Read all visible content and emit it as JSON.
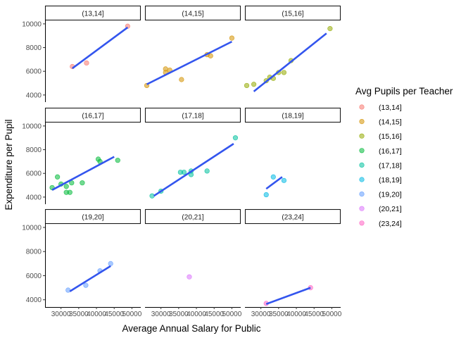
{
  "chart_data": {
    "type": "scatter",
    "layout": "facet_wrap",
    "xlabel": "Average Annual Salary for Public",
    "ylabel": "Expenditure per Pupil",
    "xlim": [
      25500,
      52500
    ],
    "ylim": [
      3400,
      10350
    ],
    "x_ticks": [
      30000,
      35000,
      40000,
      45000,
      50000
    ],
    "x_tick_labels": [
      "30000",
      "35000",
      "40000",
      "45000",
      "50000"
    ],
    "y_ticks": [
      4000,
      6000,
      8000,
      10000
    ],
    "y_tick_labels": [
      "4000",
      "6000",
      "8000",
      "10000"
    ],
    "legend": {
      "title": "Avg Pupils per Teacher",
      "position": "right",
      "entries": [
        {
          "label": "(13,14]",
          "color": "#F8766D"
        },
        {
          "label": "(14,15]",
          "color": "#D39200"
        },
        {
          "label": "(15,16]",
          "color": "#93AA00"
        },
        {
          "label": "(16,17]",
          "color": "#00BA38"
        },
        {
          "label": "(17,18]",
          "color": "#00C19F"
        },
        {
          "label": "(18,19]",
          "color": "#00B9E3"
        },
        {
          "label": "(19,20]",
          "color": "#619CFF"
        },
        {
          "label": "(20,21]",
          "color": "#DB72FB"
        },
        {
          "label": "(23,24]",
          "color": "#FF61C3"
        }
      ]
    },
    "fit_line_color": "#3355ee",
    "panels": [
      {
        "label": "(13,14]",
        "color": "#F8766D",
        "points": [
          [
            33200,
            6400
          ],
          [
            37200,
            6700
          ],
          [
            48800,
            9800
          ]
        ],
        "fit": [
          [
            33200,
            6250
          ],
          [
            48800,
            9700
          ]
        ]
      },
      {
        "label": "(14,15]",
        "color": "#D39200",
        "points": [
          [
            26000,
            4800
          ],
          [
            31300,
            5900
          ],
          [
            31300,
            6200
          ],
          [
            32500,
            6100
          ],
          [
            35800,
            5300
          ],
          [
            43000,
            7400
          ],
          [
            44000,
            7300
          ],
          [
            50000,
            8800
          ]
        ],
        "fit": [
          [
            26000,
            4900
          ],
          [
            50000,
            8500
          ]
        ]
      },
      {
        "label": "(15,16]",
        "color": "#93AA00",
        "points": [
          [
            26000,
            4800
          ],
          [
            28000,
            4900
          ],
          [
            31500,
            5200
          ],
          [
            32500,
            5500
          ],
          [
            33500,
            5400
          ],
          [
            35000,
            5900
          ],
          [
            36500,
            5900
          ],
          [
            38500,
            6900
          ],
          [
            49500,
            9600
          ]
        ],
        "fit": [
          [
            28000,
            4300
          ],
          [
            48500,
            9200
          ]
        ]
      },
      {
        "label": "(16,17]",
        "color": "#00BA38",
        "points": [
          [
            27500,
            4800
          ],
          [
            29000,
            5700
          ],
          [
            30000,
            5100
          ],
          [
            31500,
            4400
          ],
          [
            31500,
            4900
          ],
          [
            32500,
            4400
          ],
          [
            33000,
            5200
          ],
          [
            36000,
            5200
          ],
          [
            40500,
            7200
          ],
          [
            41000,
            7000
          ],
          [
            46000,
            7100
          ]
        ],
        "fit": [
          [
            27500,
            4600
          ],
          [
            45000,
            7400
          ]
        ]
      },
      {
        "label": "(17,18]",
        "color": "#00C19F",
        "points": [
          [
            27500,
            4100
          ],
          [
            30000,
            4500
          ],
          [
            35500,
            6100
          ],
          [
            36500,
            6100
          ],
          [
            38500,
            6200
          ],
          [
            38500,
            5900
          ],
          [
            43000,
            6200
          ],
          [
            51000,
            9000
          ]
        ],
        "fit": [
          [
            28000,
            4100
          ],
          [
            50500,
            8500
          ]
        ]
      },
      {
        "label": "(18,19]",
        "color": "#00B9E3",
        "points": [
          [
            31500,
            4200
          ],
          [
            33500,
            5700
          ],
          [
            36500,
            5400
          ]
        ],
        "fit": [
          [
            31500,
            4700
          ],
          [
            36000,
            5700
          ]
        ]
      },
      {
        "label": "(19,20]",
        "color": "#619CFF",
        "points": [
          [
            32000,
            4800
          ],
          [
            37000,
            5200
          ],
          [
            41000,
            6400
          ],
          [
            44000,
            7000
          ]
        ],
        "fit": [
          [
            32500,
            4700
          ],
          [
            44000,
            6800
          ]
        ]
      },
      {
        "label": "(20,21]",
        "color": "#DB72FB",
        "points": [
          [
            38000,
            5900
          ]
        ],
        "fit": null
      },
      {
        "label": "(23,24]",
        "color": "#FF61C3",
        "points": [
          [
            31500,
            3700
          ],
          [
            44000,
            5000
          ]
        ],
        "fit": [
          [
            31500,
            3650
          ],
          [
            44000,
            5000
          ]
        ]
      }
    ]
  }
}
